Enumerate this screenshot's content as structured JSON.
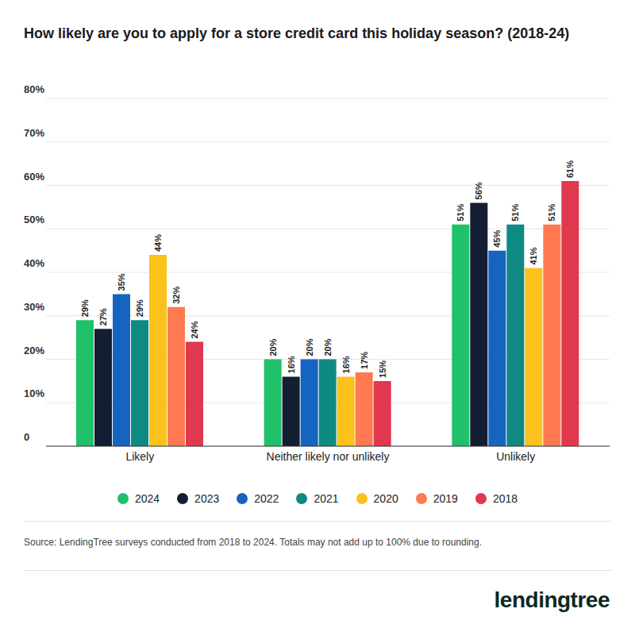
{
  "chart_data": {
    "type": "bar",
    "title": "How likely are you to apply for a store credit card this holiday season? (2018-24)",
    "source": "Source: LendingTree surveys conducted from 2018 to 2024. Totals may not add up to 100% due to rounding.",
    "brand": "lendingtree",
    "categories": [
      "Likely",
      "Neither likely nor unlikely",
      "Unlikely"
    ],
    "series": [
      {
        "name": "2024",
        "color": "#1fc16b",
        "values": [
          29,
          20,
          51
        ],
        "value_labels": [
          "29%",
          "20%",
          "51%"
        ]
      },
      {
        "name": "2023",
        "color": "#141e33",
        "values": [
          27,
          16,
          56
        ],
        "value_labels": [
          "27%",
          "16%",
          "56%"
        ]
      },
      {
        "name": "2022",
        "color": "#1565c0",
        "values": [
          35,
          20,
          45
        ],
        "value_labels": [
          "35%",
          "20%",
          "45%"
        ]
      },
      {
        "name": "2021",
        "color": "#0e8a82",
        "values": [
          29,
          20,
          51
        ],
        "value_labels": [
          "29%",
          "20%",
          "51%"
        ]
      },
      {
        "name": "2020",
        "color": "#fbc21b",
        "values": [
          44,
          16,
          41
        ],
        "value_labels": [
          "44%",
          "16%",
          "41%"
        ]
      },
      {
        "name": "2019",
        "color": "#ff7a50",
        "values": [
          32,
          17,
          51
        ],
        "value_labels": [
          "32%",
          "17%",
          "51%"
        ]
      },
      {
        "name": "2018",
        "color": "#e0384f",
        "values": [
          24,
          15,
          61
        ],
        "value_labels": [
          "24%",
          "15%",
          "61%"
        ]
      }
    ],
    "ylim": [
      0,
      80
    ],
    "yticks": [
      0,
      {
        "value": 10,
        "label": "10%"
      },
      {
        "value": 20,
        "label": "20%"
      },
      {
        "value": 30,
        "label": "30%"
      },
      {
        "value": 40,
        "label": "40%"
      },
      {
        "value": 50,
        "label": "50%"
      },
      {
        "value": 60,
        "label": "60%"
      },
      {
        "value": 70,
        "label": "70%"
      },
      {
        "value": 80,
        "label": "80%"
      }
    ],
    "grid": true,
    "legend": "bottom",
    "data_labels": true
  }
}
